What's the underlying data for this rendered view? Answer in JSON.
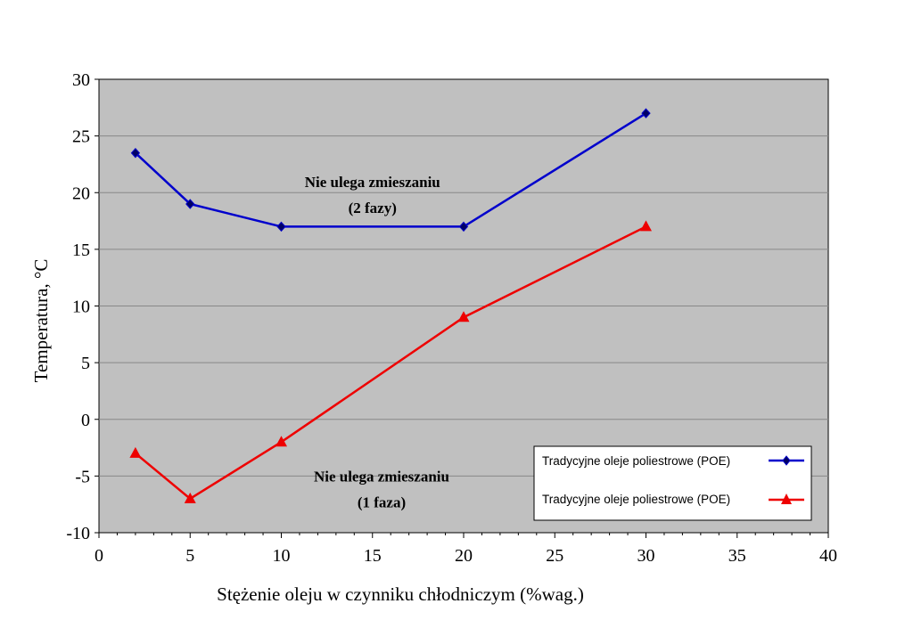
{
  "chart_data": {
    "type": "line",
    "title": "",
    "xlabel": "Stężenie oleju w czynniku chłodniczym (%wag.)",
    "ylabel": "Temperatura, °C",
    "xlim": [
      0,
      40
    ],
    "ylim": [
      -10,
      30
    ],
    "x_ticks": [
      0,
      5,
      10,
      15,
      20,
      25,
      30,
      35,
      40
    ],
    "y_ticks": [
      -10,
      -5,
      0,
      5,
      10,
      15,
      20,
      25,
      30
    ],
    "grid": true,
    "legend_position": "bottom-right",
    "plot_background": "#c0c0c0",
    "series": [
      {
        "name": "Tradycyjne oleje poliestrowe (POE)",
        "color": "#0000cc",
        "marker": "diamond",
        "x": [
          2,
          5,
          10,
          20,
          30
        ],
        "y": [
          23.5,
          19,
          17,
          17,
          27
        ]
      },
      {
        "name": "Tradycyjne oleje poliestrowe (POE)",
        "color": "#ee0000",
        "marker": "triangle",
        "x": [
          2,
          5,
          10,
          20,
          30
        ],
        "y": [
          -3,
          -7,
          -2,
          9,
          17
        ]
      }
    ],
    "annotations": [
      {
        "line1": "Nie ulega zmieszaniu",
        "line2": "(2 fazy)",
        "x": 15,
        "y": 20.5
      },
      {
        "line1": "Nie ulega zmieszaniu",
        "line2": "(1 faza)",
        "x": 15.5,
        "y": -5.5
      }
    ]
  }
}
